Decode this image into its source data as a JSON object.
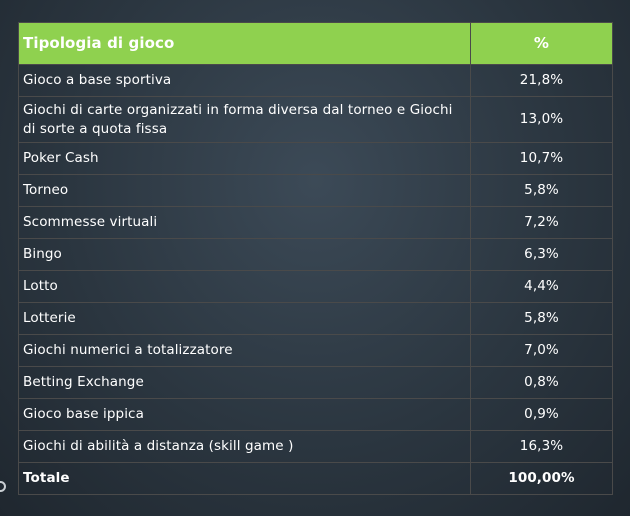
{
  "table": {
    "headers": {
      "type": "Tipologia di gioco",
      "percent": "%"
    },
    "rows": [
      {
        "label": "Gioco a base sportiva",
        "value": "21,8%"
      },
      {
        "label": "Giochi di carte organizzati in forma diversa dal torneo e Giochi di sorte a quota fissa",
        "value": "13,0%"
      },
      {
        "label": "Poker Cash",
        "value": "10,7%"
      },
      {
        "label": "Torneo",
        "value": "5,8%"
      },
      {
        "label": "Scommesse virtuali",
        "value": "7,2%"
      },
      {
        "label": "Bingo",
        "value": "6,3%"
      },
      {
        "label": "Lotto",
        "value": "4,4%"
      },
      {
        "label": "Lotterie",
        "value": "5,8%"
      },
      {
        "label": "Giochi numerici a totalizzatore",
        "value": "7,0%"
      },
      {
        "label": "Betting Exchange",
        "value": "0,8%"
      },
      {
        "label": "Gioco base ippica",
        "value": "0,9%"
      },
      {
        "label": "Giochi di abilità a distanza (skill game )",
        "value": "16,3%"
      }
    ],
    "total": {
      "label": "Totale",
      "value": "100,00%"
    }
  },
  "colors": {
    "header_bg": "#8fd14f",
    "slide_bg": "#2b3640",
    "text": "#ffffff"
  }
}
